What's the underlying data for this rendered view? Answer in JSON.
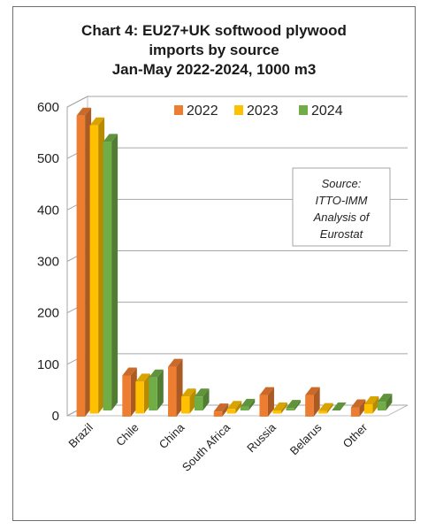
{
  "chart_data": {
    "type": "bar",
    "title_lines": [
      "Chart 4: EU27+UK softwood plywood",
      "imports by source",
      "Jan-May 2022-2024, 1000 m3"
    ],
    "categories": [
      "Brazil",
      "Chile",
      "China",
      "South Africa",
      "Russia",
      "Belarus",
      "Other"
    ],
    "series": [
      {
        "name": "2022",
        "values": [
          585,
          80,
          97,
          10,
          42,
          42,
          18
        ]
      },
      {
        "name": "2023",
        "values": [
          560,
          62,
          33,
          9,
          6,
          5,
          18
        ]
      },
      {
        "name": "2024",
        "values": [
          522,
          64,
          27,
          7,
          5,
          0,
          17
        ]
      }
    ],
    "yticks": [
      0,
      100,
      200,
      300,
      400,
      500,
      600
    ],
    "ylim": [
      0,
      600
    ],
    "grid": true,
    "legend_position": "top-right",
    "annotation": [
      "Source:",
      "ITTO-IMM",
      "Analysis of",
      "Eurostat"
    ],
    "colors": {
      "2022": "#ED7D31",
      "2023": "#FFC000",
      "2024": "#70AD47"
    }
  }
}
